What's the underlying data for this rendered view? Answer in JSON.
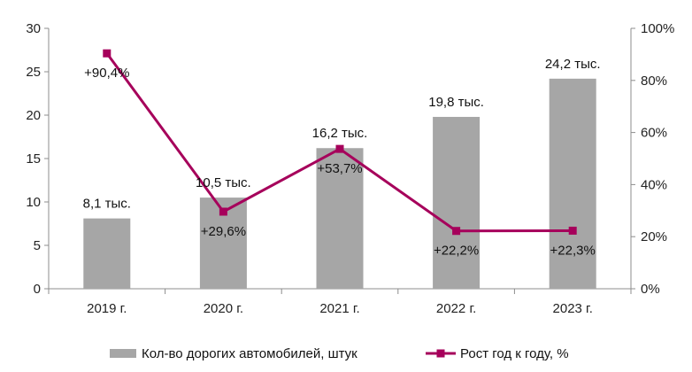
{
  "chart_data": {
    "type": "bar",
    "categories": [
      "2019 г.",
      "2020 г.",
      "2021 г.",
      "2022 г.",
      "2023 г."
    ],
    "series": [
      {
        "name": "Кол-во дорогих автомобилей, штук",
        "type": "bar",
        "axis": "left",
        "color": "#a6a6a6",
        "values": [
          8.1,
          10.5,
          16.2,
          19.8,
          24.2
        ],
        "labels": [
          "8,1 тыс.",
          "10,5 тыс.",
          "16,2 тыс.",
          "19,8 тыс.",
          "24,2 тыс."
        ]
      },
      {
        "name": "Рост год к году, %",
        "type": "line",
        "axis": "right",
        "color": "#a6005b",
        "values": [
          90.4,
          29.6,
          53.7,
          22.2,
          22.3
        ],
        "labels": [
          "+90,4%",
          "+29,6%",
          "+53,7%",
          "+22,2%",
          "+22,3%"
        ]
      }
    ],
    "y_left": {
      "min": 0,
      "max": 30,
      "ticks": [
        "0",
        "5",
        "10",
        "15",
        "20",
        "25",
        "30"
      ]
    },
    "y_right": {
      "min": 0,
      "max": 100,
      "ticks": [
        "0%",
        "20%",
        "40%",
        "60%",
        "80%",
        "100%"
      ]
    },
    "grid": false,
    "legend_position": "bottom"
  }
}
